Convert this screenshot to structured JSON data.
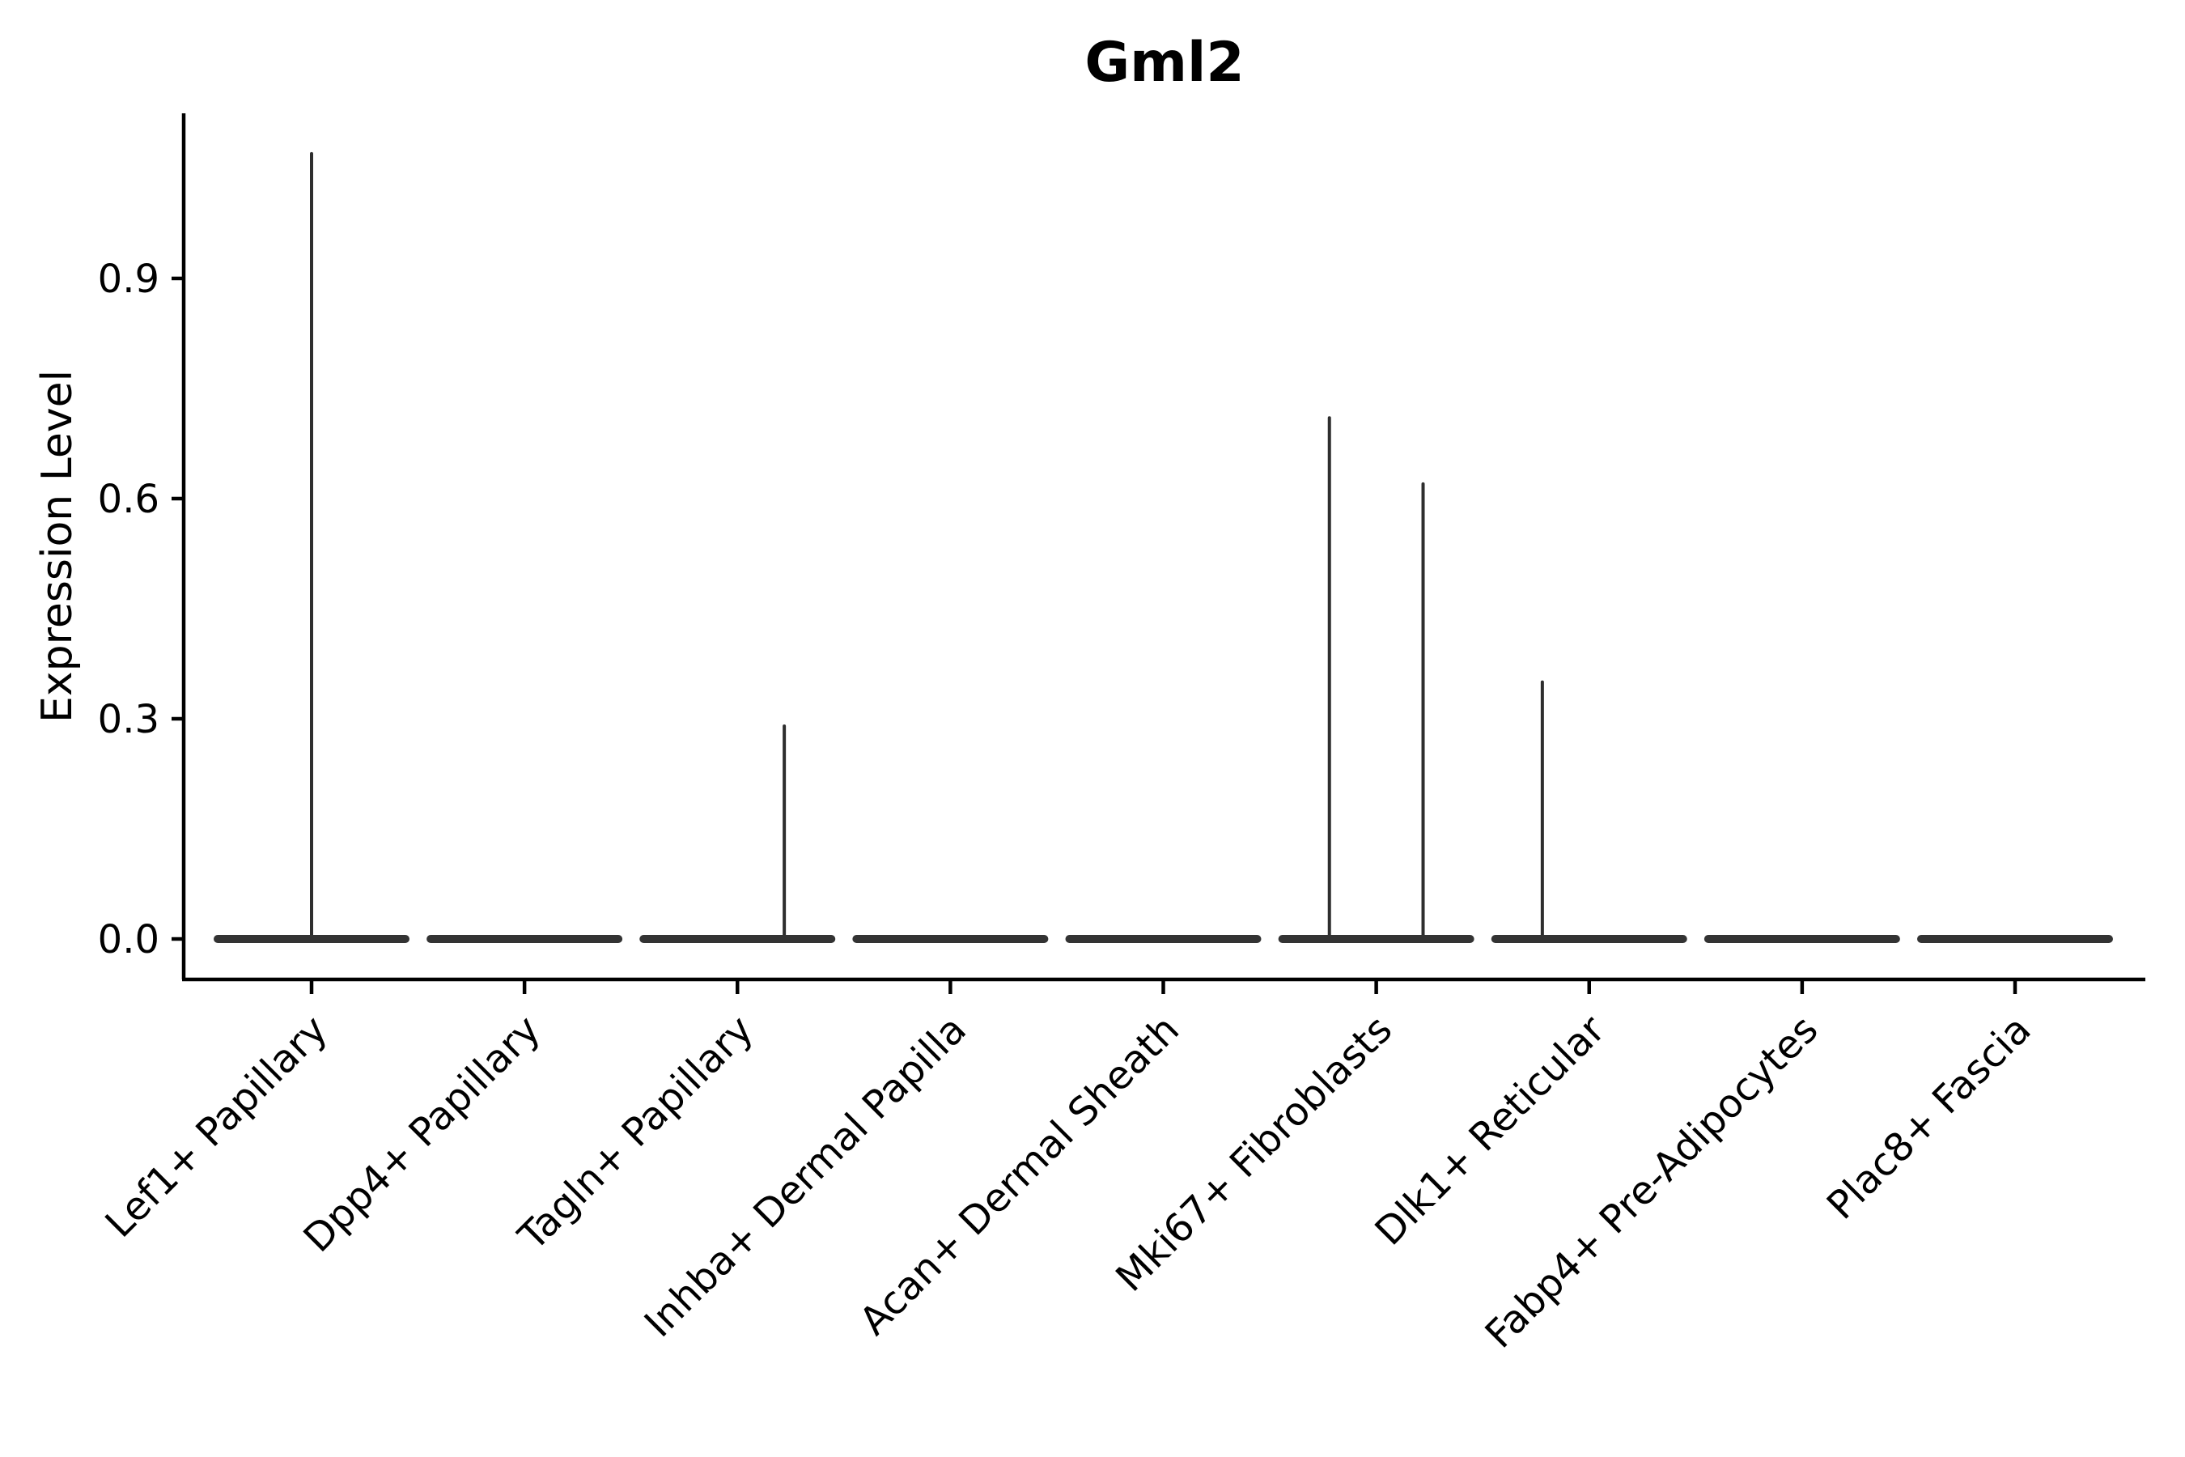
{
  "chart_data": {
    "type": "violin",
    "title": "Gml2",
    "xlabel": "",
    "ylabel": "Expression Level",
    "categories": [
      "Lef1+ Papillary",
      "Dpp4+ Papillary",
      "Tagln+ Papillary",
      "Inhba+ Dermal Papilla",
      "Acan+ Dermal Sheath",
      "Mki67+ Fibroblasts",
      "Dlk1+ Reticular",
      "Fabp4+ Pre-Adipocytes",
      "Plac8+ Fascia"
    ],
    "y_tick_labels": [
      "0.0",
      "0.3",
      "0.6",
      "0.9"
    ],
    "y_ticks": [
      0.0,
      0.3,
      0.6,
      0.9
    ],
    "ylim": [
      0.0,
      1.125
    ],
    "grid": false,
    "legend": null,
    "violins": [
      {
        "category": "Lef1+ Papillary",
        "bulk_at": 0.0,
        "spikes": [
          {
            "x_offset_frac": 0.0,
            "max": 1.07
          }
        ]
      },
      {
        "category": "Dpp4+ Papillary",
        "bulk_at": 0.0,
        "spikes": []
      },
      {
        "category": "Tagln+ Papillary",
        "bulk_at": 0.0,
        "spikes": [
          {
            "x_offset_frac": 0.22,
            "max": 0.29
          }
        ]
      },
      {
        "category": "Inhba+ Dermal Papilla",
        "bulk_at": 0.0,
        "spikes": []
      },
      {
        "category": "Acan+ Dermal Sheath",
        "bulk_at": 0.0,
        "spikes": []
      },
      {
        "category": "Mki67+ Fibroblasts",
        "bulk_at": 0.0,
        "spikes": [
          {
            "x_offset_frac": -0.22,
            "max": 0.71
          },
          {
            "x_offset_frac": 0.22,
            "max": 0.62
          }
        ]
      },
      {
        "category": "Dlk1+ Reticular",
        "bulk_at": 0.0,
        "spikes": [
          {
            "x_offset_frac": -0.22,
            "max": 0.35
          }
        ]
      },
      {
        "category": "Fabp4+ Pre-Adipocytes",
        "bulk_at": 0.0,
        "spikes": []
      },
      {
        "category": "Plac8+ Fascia",
        "bulk_at": 0.0,
        "spikes": []
      }
    ],
    "colors": {
      "axis": "#000000",
      "text": "#000000",
      "violin_body": "#333333",
      "spike": "#2e2e2e",
      "background": "#ffffff"
    }
  }
}
